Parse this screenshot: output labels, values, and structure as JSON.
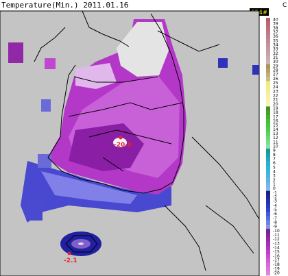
{
  "title": "Temperature(Min.) 2011.01.16",
  "badge": "654#",
  "unit": "C",
  "scale": {
    "labels": [
      "40",
      "39",
      "38",
      "37",
      "36",
      "35",
      "34",
      "33",
      "32",
      "31",
      "30",
      "29",
      "28",
      "27",
      "26",
      "25",
      "24",
      "23",
      "22",
      "21",
      "20",
      "19",
      "18",
      "17",
      "16",
      "15",
      "14",
      "13",
      "12",
      "11",
      "10",
      "9",
      "8",
      "7",
      "6",
      "5",
      "4",
      "3",
      "2",
      "1",
      "0",
      "-1",
      "-2",
      "-3",
      "-4",
      "-5",
      "-6",
      "-7",
      "-8",
      "-9",
      "-10",
      "-11",
      "-12",
      "-13",
      "-14",
      "-15",
      "-16",
      "-17",
      "-18",
      "-19",
      "-20"
    ]
  },
  "annotations": [
    {
      "label": "-20.0"
    },
    {
      "label": "-2.1"
    }
  ]
}
